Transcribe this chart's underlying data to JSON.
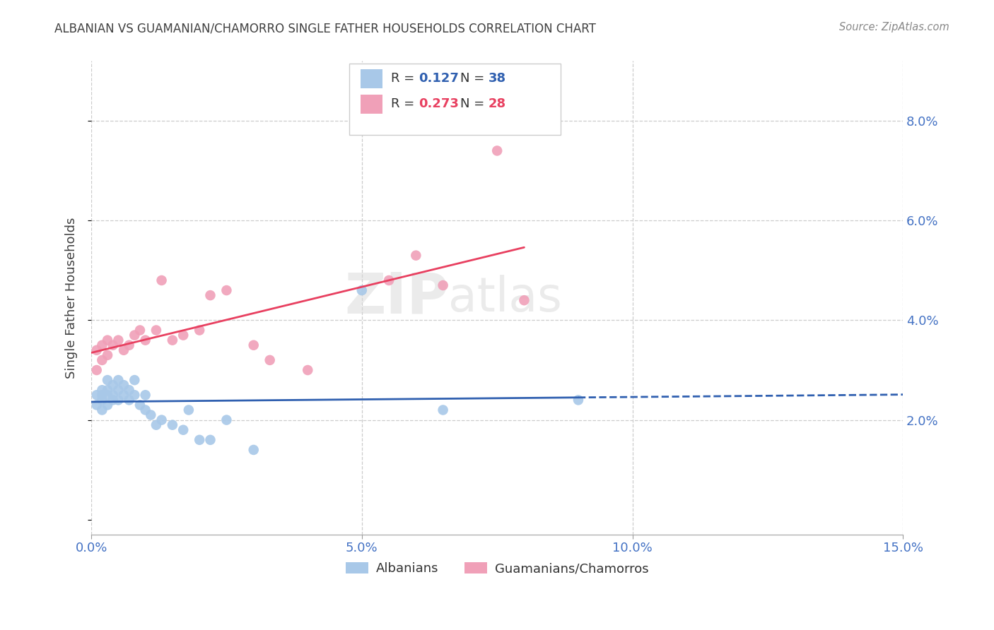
{
  "title": "ALBANIAN VS GUAMANIAN/CHAMORRO SINGLE FATHER HOUSEHOLDS CORRELATION CHART",
  "source": "Source: ZipAtlas.com",
  "ylabel": "Single Father Households",
  "xlabel_ticks": [
    "0.0%",
    "5.0%",
    "10.0%",
    "15.0%"
  ],
  "xlabel_vals": [
    0.0,
    0.05,
    0.1,
    0.15
  ],
  "ylabel_ticks": [
    "2.0%",
    "4.0%",
    "6.0%",
    "8.0%"
  ],
  "ylabel_vals": [
    0.02,
    0.04,
    0.06,
    0.08
  ],
  "xlim": [
    0.0,
    0.15
  ],
  "ylim": [
    -0.003,
    0.092
  ],
  "watermark_line1": "ZIP",
  "watermark_line2": "atlas",
  "albanian_R": "0.127",
  "albanian_N": "38",
  "guamanian_R": "0.273",
  "guamanian_N": "28",
  "albanian_color": "#a8c8e8",
  "guamanian_color": "#f0a0b8",
  "albanian_line_color": "#3060b0",
  "guamanian_line_color": "#e84060",
  "albanian_x": [
    0.001,
    0.001,
    0.002,
    0.002,
    0.002,
    0.002,
    0.003,
    0.003,
    0.003,
    0.003,
    0.004,
    0.004,
    0.004,
    0.005,
    0.005,
    0.005,
    0.006,
    0.006,
    0.007,
    0.007,
    0.008,
    0.008,
    0.009,
    0.01,
    0.01,
    0.011,
    0.012,
    0.013,
    0.015,
    0.017,
    0.018,
    0.02,
    0.022,
    0.025,
    0.03,
    0.05,
    0.065,
    0.09
  ],
  "albanian_y": [
    0.023,
    0.025,
    0.022,
    0.024,
    0.025,
    0.026,
    0.023,
    0.025,
    0.026,
    0.028,
    0.024,
    0.025,
    0.027,
    0.024,
    0.026,
    0.028,
    0.025,
    0.027,
    0.024,
    0.026,
    0.025,
    0.028,
    0.023,
    0.022,
    0.025,
    0.021,
    0.019,
    0.02,
    0.019,
    0.018,
    0.022,
    0.016,
    0.016,
    0.02,
    0.014,
    0.046,
    0.022,
    0.024
  ],
  "guamanian_x": [
    0.001,
    0.001,
    0.002,
    0.002,
    0.003,
    0.003,
    0.004,
    0.005,
    0.006,
    0.007,
    0.008,
    0.009,
    0.01,
    0.012,
    0.013,
    0.015,
    0.017,
    0.02,
    0.022,
    0.025,
    0.03,
    0.033,
    0.04,
    0.055,
    0.06,
    0.065,
    0.075,
    0.08
  ],
  "guamanian_y": [
    0.03,
    0.034,
    0.032,
    0.035,
    0.033,
    0.036,
    0.035,
    0.036,
    0.034,
    0.035,
    0.037,
    0.038,
    0.036,
    0.038,
    0.048,
    0.036,
    0.037,
    0.038,
    0.045,
    0.046,
    0.035,
    0.032,
    0.03,
    0.048,
    0.053,
    0.047,
    0.074,
    0.044
  ],
  "legend_label_albanian": "Albanians",
  "legend_label_guamanian": "Guamanians/Chamorros",
  "background_color": "#ffffff",
  "grid_color": "#cccccc",
  "tick_label_color": "#4472c4",
  "title_color": "#404040"
}
